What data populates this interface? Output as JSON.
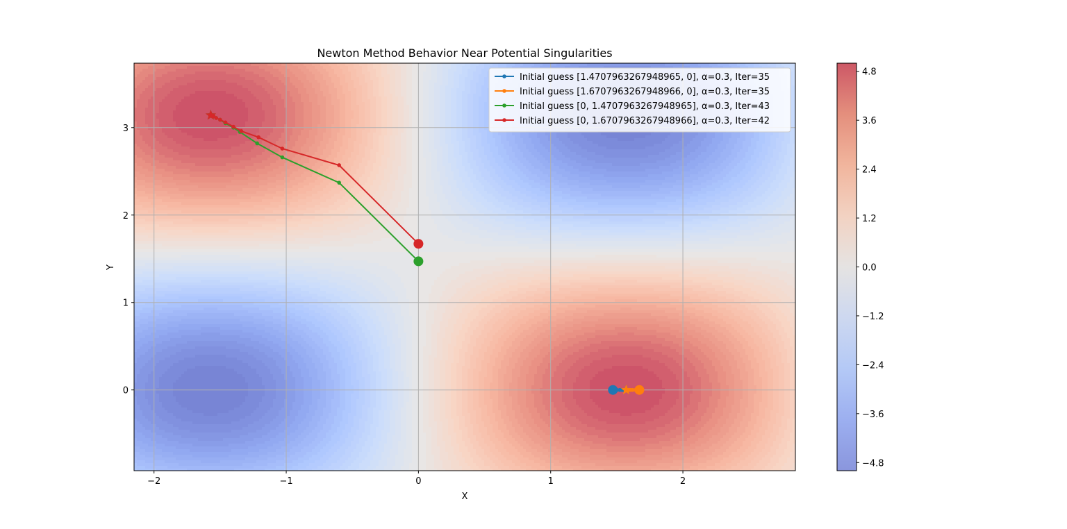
{
  "chart_data": {
    "type": "contour",
    "title": "Newton Method Behavior Near Potential Singularities",
    "xlabel": "X",
    "ylabel": "Y",
    "xlim": [
      -2.1508,
      2.8508
    ],
    "ylim": [
      -0.9233,
      3.7367
    ],
    "x_ticks": [
      -2,
      -1,
      0,
      1,
      2
    ],
    "x_tick_labels": [
      "−2",
      "−1",
      "0",
      "1",
      "2"
    ],
    "y_ticks": [
      0,
      1,
      2,
      3
    ],
    "y_tick_labels": [
      "0",
      "1",
      "2",
      "3"
    ],
    "grid": true,
    "legend_position": "upper-right",
    "surface": {
      "description_formula": "z = 5*sin(x)*cos(y)",
      "amplitude": 5,
      "colormap": "coolwarm",
      "alpha": 0.7,
      "levels": 50
    },
    "colorbar": {
      "vmin": -5,
      "vmax": 5,
      "ticks": [
        4.8,
        3.6,
        2.4,
        1.2,
        0.0,
        -1.2,
        -2.4,
        -3.6,
        -4.8
      ],
      "tick_labels": [
        "4.8",
        "3.6",
        "2.4",
        "1.2",
        "0.0",
        "−1.2",
        "−2.4",
        "−3.6",
        "−4.8"
      ]
    },
    "series": [
      {
        "name": "Initial guess [1.4707963267948965, 0], α=0.3, Iter=35",
        "color": "#1f77b4",
        "start": [
          1.4708,
          0.0
        ],
        "end": [
          1.5708,
          0.0
        ],
        "points": [
          [
            1.4708,
            0.0
          ],
          [
            1.5008,
            0.0
          ],
          [
            1.5218,
            0.0
          ],
          [
            1.5365,
            0.0
          ],
          [
            1.5468,
            0.0
          ],
          [
            1.554,
            0.0
          ],
          [
            1.559,
            0.0
          ],
          [
            1.5625,
            0.0
          ],
          [
            1.5708,
            0.0
          ]
        ]
      },
      {
        "name": "Initial guess [1.6707963267948966, 0], α=0.3, Iter=35",
        "color": "#ff7f0e",
        "start": [
          1.6708,
          0.0
        ],
        "end": [
          1.5708,
          0.0
        ],
        "points": [
          [
            1.6708,
            0.0
          ],
          [
            1.6408,
            0.0
          ],
          [
            1.6198,
            0.0
          ],
          [
            1.6051,
            0.0
          ],
          [
            1.5948,
            0.0
          ],
          [
            1.5876,
            0.0
          ],
          [
            1.5826,
            0.0
          ],
          [
            1.5791,
            0.0
          ],
          [
            1.5708,
            0.0
          ]
        ]
      },
      {
        "name": "Initial guess [0, 1.4707963267948965], α=0.3, Iter=43",
        "color": "#2ca02c",
        "start": [
          0.0,
          1.4708
        ],
        "end": [
          -1.5708,
          3.1416
        ],
        "points": [
          [
            0.0,
            1.4708
          ],
          [
            -0.6,
            2.37
          ],
          [
            -1.03,
            2.66
          ],
          [
            -1.22,
            2.82
          ],
          [
            -1.35,
            2.95
          ],
          [
            -1.4,
            3.0
          ],
          [
            -1.46,
            3.05
          ],
          [
            -1.5,
            3.09
          ],
          [
            -1.53,
            3.11
          ],
          [
            -1.55,
            3.13
          ],
          [
            -1.5708,
            3.1416
          ]
        ]
      },
      {
        "name": "Initial guess [0, 1.6707963267948966], α=0.3, Iter=42",
        "color": "#d62728",
        "start": [
          0.0,
          1.6708
        ],
        "end": [
          -1.5708,
          3.1416
        ],
        "points": [
          [
            0.0,
            1.6708
          ],
          [
            -0.6,
            2.57
          ],
          [
            -1.03,
            2.76
          ],
          [
            -1.21,
            2.89
          ],
          [
            -1.34,
            2.96
          ],
          [
            -1.4,
            3.01
          ],
          [
            -1.46,
            3.06
          ],
          [
            -1.5,
            3.09
          ],
          [
            -1.53,
            3.11
          ],
          [
            -1.55,
            3.13
          ],
          [
            -1.5708,
            3.1416
          ]
        ]
      }
    ]
  }
}
